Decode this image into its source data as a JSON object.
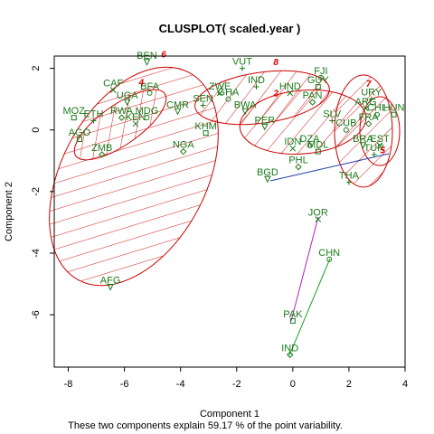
{
  "chart_data": {
    "type": "scatter",
    "title": "CLUSPLOT( scaled.year )",
    "xlabel": "Component 1",
    "ylabel": "Component 2",
    "footnote": "These two components explain 59.17 % of the point variability.",
    "xlim": [
      -8.5,
      4.0
    ],
    "ylim": [
      -7.7,
      2.4
    ],
    "xticks": [
      -8,
      -6,
      -4,
      -2,
      0,
      2,
      4
    ],
    "yticks": [
      -6,
      -4,
      -2,
      0,
      2
    ],
    "colors": {
      "points": "#1a7a1a",
      "ellipse": "#cc0000",
      "cluster_label": "#dd0000",
      "axes": "#000000"
    },
    "points": [
      {
        "label": "BEN",
        "x": -5.2,
        "y": 2.2
      },
      {
        "label": "VUT",
        "x": -1.8,
        "y": 2.0
      },
      {
        "label": "CAF",
        "x": -6.4,
        "y": 1.3
      },
      {
        "label": "BFA",
        "x": -5.1,
        "y": 1.2
      },
      {
        "label": "MOZ",
        "x": -7.8,
        "y": 0.4
      },
      {
        "label": "RWA",
        "x": -6.1,
        "y": 0.4
      },
      {
        "label": "UGA",
        "x": -5.9,
        "y": 0.9
      },
      {
        "label": "ETH",
        "x": -7.1,
        "y": 0.3
      },
      {
        "label": "KEN",
        "x": -5.6,
        "y": 0.2
      },
      {
        "label": "MDG",
        "x": -5.2,
        "y": 0.4
      },
      {
        "label": "AGO",
        "x": -7.6,
        "y": -0.3
      },
      {
        "label": "ZMB",
        "x": -6.8,
        "y": -0.8
      },
      {
        "label": "CMR",
        "x": -4.1,
        "y": 0.6
      },
      {
        "label": "SEN",
        "x": -3.2,
        "y": 0.8
      },
      {
        "label": "ZWE",
        "x": -2.6,
        "y": 1.2
      },
      {
        "label": "GHA",
        "x": -2.3,
        "y": 1.0
      },
      {
        "label": "KHM",
        "x": -3.1,
        "y": -0.1
      },
      {
        "label": "NGA",
        "x": -3.9,
        "y": -0.7
      },
      {
        "label": "BWA",
        "x": -1.7,
        "y": 0.6
      },
      {
        "label": "IND",
        "x": -1.3,
        "y": 1.4
      },
      {
        "label": "HND",
        "x": -0.1,
        "y": 1.2
      },
      {
        "label": "FJI",
        "x": 1.0,
        "y": 1.7
      },
      {
        "label": "GUY",
        "x": 0.9,
        "y": 1.4
      },
      {
        "label": "PAN",
        "x": 0.7,
        "y": 0.9
      },
      {
        "label": "PER",
        "x": -1.0,
        "y": 0.1
      },
      {
        "label": "SLV",
        "x": 1.4,
        "y": 0.3
      },
      {
        "label": "IDN",
        "x": 0.0,
        "y": -0.6
      },
      {
        "label": "DZA",
        "x": 0.6,
        "y": -0.5
      },
      {
        "label": "MDL",
        "x": 0.9,
        "y": -0.7
      },
      {
        "label": "PHL",
        "x": 0.2,
        "y": -1.2
      },
      {
        "label": "BGD",
        "x": -0.9,
        "y": -1.6
      },
      {
        "label": "THA",
        "x": 2.0,
        "y": -1.7
      },
      {
        "label": "JOR",
        "x": 0.9,
        "y": -2.9
      },
      {
        "label": "CHN",
        "x": 1.3,
        "y": -4.2
      },
      {
        "label": "PAK",
        "x": 0.0,
        "y": -6.2
      },
      {
        "label": "IND",
        "x": -0.1,
        "y": -7.3
      },
      {
        "label": "AFG",
        "x": -6.5,
        "y": -5.1
      },
      {
        "label": "URY",
        "x": 2.8,
        "y": 1.0
      },
      {
        "label": "ARG",
        "x": 2.6,
        "y": 0.7
      },
      {
        "label": "CHL",
        "x": 3.0,
        "y": 0.5
      },
      {
        "label": "HUN",
        "x": 3.6,
        "y": 0.5
      },
      {
        "label": "FRA",
        "x": 2.7,
        "y": 0.2
      },
      {
        "label": "BRA",
        "x": 2.5,
        "y": -0.5
      },
      {
        "label": "TUR",
        "x": 2.9,
        "y": -0.8
      },
      {
        "label": "EST",
        "x": 3.1,
        "y": -0.5
      },
      {
        "label": "CUB",
        "x": 1.9,
        "y": 0.0
      }
    ],
    "clusters": [
      {
        "label": "4",
        "label_x": -5.4,
        "label_y": 1.45
      },
      {
        "label": "6",
        "label_x": -4.6,
        "label_y": 2.35
      },
      {
        "label": "8",
        "label_x": -0.6,
        "label_y": 2.1
      },
      {
        "label": "2",
        "label_x": -0.6,
        "label_y": 1.1
      },
      {
        "label": "7",
        "label_x": 2.7,
        "label_y": 1.4
      },
      {
        "label": "5",
        "label_x": 3.2,
        "label_y": -0.75
      }
    ]
  }
}
